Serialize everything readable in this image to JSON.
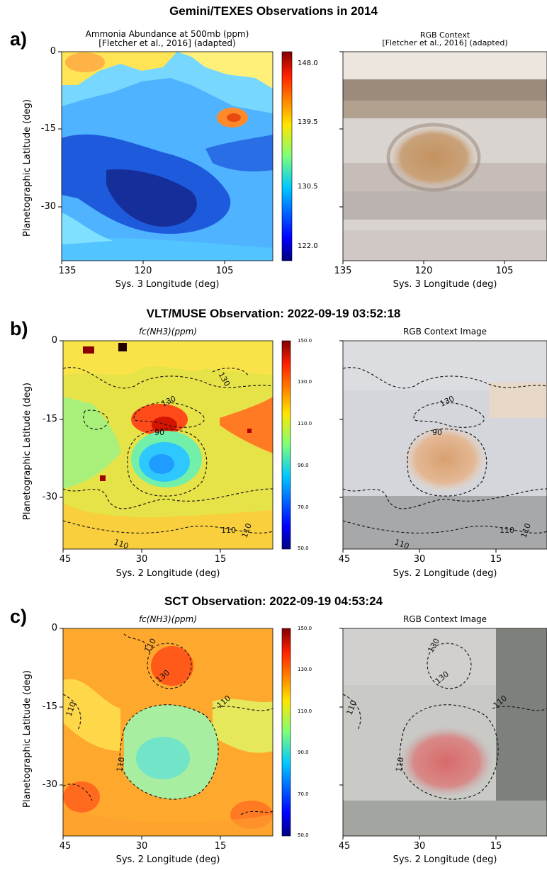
{
  "figure": {
    "panel_a": {
      "label": "a)",
      "title": "Gemini/TEXES Observations in 2014",
      "left_title_line1": "Ammonia Abundance at 500mb (ppm)",
      "left_title_line2": "[Fletcher et al., 2016] (adapted)",
      "right_title_line1": "RGB Context",
      "right_title_line2": "[Fletcher et al., 2016] (adapted)",
      "ylabel": "Planetographic Latitude (deg)",
      "xlabel": "Sys. 3 Longitude (deg)",
      "xticks": [
        "135",
        "120",
        "105"
      ],
      "yticks": [
        "0",
        "-15",
        "-30"
      ],
      "colorbar_ticks": [
        "148.0",
        "139.5",
        "130.5",
        "122.0"
      ]
    },
    "panel_b": {
      "label": "b)",
      "title": "VLT/MUSE Observation: 2022-09-19 03:52:18",
      "left_title": "fc(NH3)(ppm)",
      "right_title": "RGB Context Image",
      "ylabel": "Planetographic Latitude (deg)",
      "xlabel": "Sys. 2 Longitude (deg)",
      "xticks": [
        "45",
        "30",
        "15"
      ],
      "yticks": [
        "0",
        "-15",
        "-30"
      ],
      "colorbar_ticks": [
        "150.0",
        "130.0",
        "110.0",
        "90.0",
        "70.0",
        "50.0"
      ],
      "contour_labels": [
        "130",
        "90",
        "130",
        "110",
        "110",
        "110",
        "130",
        "90",
        "110",
        "110",
        "110"
      ]
    },
    "panel_c": {
      "label": "c)",
      "title": "SCT Observation: 2022-09-19 04:53:24",
      "left_title": "fc(NH3)(ppm)",
      "right_title": "RGB Context Image",
      "ylabel": "Planetographic Latitude (deg)",
      "xlabel": "Sys. 2 Longitude (deg)",
      "xticks": [
        "45",
        "30",
        "15"
      ],
      "yticks": [
        "0",
        "-15",
        "-30"
      ],
      "colorbar_ticks": [
        "150.0",
        "130.0",
        "110.0",
        "90.0",
        "70.0",
        "50.0"
      ],
      "contour_labels": [
        "110",
        "130",
        "110",
        "110",
        "130",
        "110",
        "110",
        "130",
        "110",
        "110"
      ]
    }
  },
  "chart_data": [
    {
      "type": "heatmap",
      "title": "Ammonia Abundance at 500mb (ppm)",
      "xlabel": "Sys. 3 Longitude (deg)",
      "ylabel": "Planetographic Latitude (deg)",
      "xlim": [
        135,
        95
      ],
      "ylim": [
        -40,
        0
      ],
      "colorbar_range": [
        120.5,
        150
      ],
      "colormap": "jet"
    },
    {
      "type": "heatmap",
      "title": "fc(NH3)(ppm)",
      "xlabel": "Sys. 2 Longitude (deg)",
      "ylabel": "Planetographic Latitude (deg)",
      "xlim": [
        45,
        5
      ],
      "ylim": [
        -40,
        0
      ],
      "colorbar_range": [
        50,
        150
      ],
      "colormap": "jet",
      "contour_levels": [
        90,
        110,
        130
      ]
    },
    {
      "type": "heatmap",
      "title": "fc(NH3)(ppm)",
      "xlabel": "Sys. 2 Longitude (deg)",
      "ylabel": "Planetographic Latitude (deg)",
      "xlim": [
        45,
        5
      ],
      "ylim": [
        -40,
        0
      ],
      "colorbar_range": [
        50,
        150
      ],
      "colormap": "jet",
      "contour_levels": [
        110,
        130
      ]
    }
  ]
}
